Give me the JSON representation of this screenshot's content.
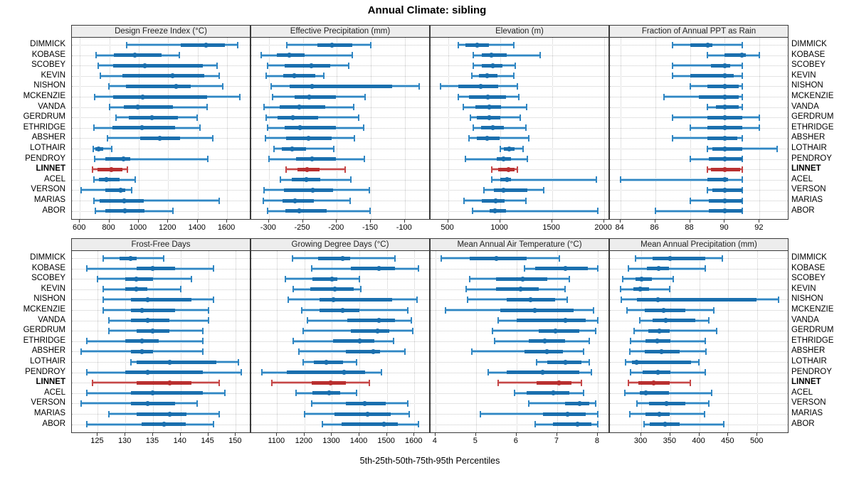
{
  "title": "Annual Climate: sibling",
  "footer_label": "5th-25th-50th-75th-95th Percentiles",
  "highlight_station": "LINNET",
  "colors": {
    "blue_dark": "#1a6fae",
    "blue_line": "#2f86c3",
    "blue_light": "#a9cfe8",
    "red_dark": "#b92f2f",
    "red_line": "#c64747",
    "red_light": "#eac3c3",
    "header_bg": "#ededed",
    "grid": "#c9c9c9",
    "border": "#3a3a3a"
  },
  "chart_data": {
    "type": "dot-whisker-percentile-trellis",
    "percentile_labels": [
      "5th",
      "25th",
      "50th",
      "75th",
      "95th"
    ],
    "layout": {
      "rows": 2,
      "cols": 4
    },
    "stations": [
      "DIMMICK",
      "KOBASE",
      "SCOBEY",
      "KEVIN",
      "NISHON",
      "MCKENZIE",
      "VANDA",
      "GERDRUM",
      "ETHRIDGE",
      "ABSHER",
      "LOTHAIR",
      "PENDROY",
      "LINNET",
      "ACEL",
      "VERSON",
      "MARIAS",
      "ABOR"
    ],
    "panels": [
      {
        "title": "Design Freeze Index (°C)",
        "xlim": [
          546,
          1764
        ],
        "ticks": [
          600,
          800,
          1000,
          1200,
          1400,
          1600
        ],
        "values": [
          [
            920,
            1285,
            1455,
            1585,
            1670
          ],
          [
            710,
            830,
            975,
            1155,
            1275
          ],
          [
            725,
            825,
            1040,
            1435,
            1530
          ],
          [
            740,
            890,
            1230,
            1445,
            1545
          ],
          [
            795,
            915,
            1255,
            1355,
            1570
          ],
          [
            700,
            825,
            1025,
            1465,
            1685
          ],
          [
            800,
            900,
            995,
            1230,
            1465
          ],
          [
            845,
            935,
            1090,
            1265,
            1395
          ],
          [
            695,
            820,
            1020,
            1245,
            1415
          ],
          [
            790,
            1010,
            1145,
            1280,
            1505
          ],
          [
            690,
            705,
            725,
            760,
            815
          ],
          [
            700,
            775,
            895,
            940,
            1470
          ],
          [
            685,
            720,
            815,
            890,
            925
          ],
          [
            695,
            730,
            780,
            870,
            975
          ],
          [
            610,
            775,
            875,
            910,
            950
          ],
          [
            695,
            735,
            900,
            1035,
            1545
          ],
          [
            705,
            775,
            905,
            1040,
            1230
          ]
        ]
      },
      {
        "title": "Effective Precipitation (mm)",
        "xlim": [
          -326,
          -62
        ],
        "ticks": [
          -300,
          -250,
          -200,
          -150,
          -100
        ],
        "values": [
          [
            -274,
            -229,
            -207,
            -177,
            -150
          ],
          [
            -311,
            -288,
            -270,
            -247,
            -177
          ],
          [
            -302,
            -277,
            -237,
            -210,
            -182
          ],
          [
            -304,
            -279,
            -263,
            -232,
            -219
          ],
          [
            -297,
            -269,
            -236,
            -119,
            -79
          ],
          [
            -295,
            -262,
            -241,
            -201,
            -158
          ],
          [
            -307,
            -284,
            -255,
            -217,
            -175
          ],
          [
            -304,
            -287,
            -265,
            -227,
            -168
          ],
          [
            -302,
            -277,
            -254,
            -201,
            -160
          ],
          [
            -305,
            -275,
            -242,
            -208,
            -174
          ],
          [
            -292,
            -281,
            -266,
            -245,
            -204
          ],
          [
            -300,
            -260,
            -236,
            -201,
            -159
          ],
          [
            -275,
            -258,
            -244,
            -225,
            -188
          ],
          [
            -283,
            -266,
            -245,
            -224,
            -179
          ],
          [
            -307,
            -278,
            -235,
            -206,
            -152
          ],
          [
            -308,
            -280,
            -262,
            -234,
            -180
          ],
          [
            -302,
            -276,
            -255,
            -215,
            -151
          ]
        ]
      },
      {
        "title": "Elevation (m)",
        "xlim": [
          332,
          2057
        ],
        "ticks": [
          500,
          1000,
          1500,
          2000
        ],
        "values": [
          [
            600,
            665,
            780,
            890,
            1135
          ],
          [
            740,
            825,
            920,
            1065,
            1385
          ],
          [
            745,
            825,
            930,
            1020,
            1145
          ],
          [
            730,
            795,
            875,
            975,
            1135
          ],
          [
            425,
            600,
            815,
            985,
            1170
          ],
          [
            600,
            705,
            885,
            1055,
            1180
          ],
          [
            650,
            760,
            900,
            1010,
            1255
          ],
          [
            715,
            780,
            895,
            1005,
            1195
          ],
          [
            740,
            820,
            930,
            1035,
            1250
          ],
          [
            700,
            775,
            875,
            995,
            1275
          ],
          [
            1000,
            1035,
            1085,
            1140,
            1220
          ],
          [
            665,
            970,
            1035,
            1105,
            1260
          ],
          [
            920,
            985,
            1080,
            1140,
            1170
          ],
          [
            920,
            1005,
            1065,
            1105,
            1930
          ],
          [
            845,
            940,
            1035,
            1260,
            1420
          ],
          [
            655,
            825,
            955,
            1045,
            1250
          ],
          [
            735,
            900,
            950,
            1060,
            1940
          ]
        ]
      },
      {
        "title": "Fraction of Annual PPT as Rain",
        "xlim": [
          83.4,
          93.7
        ],
        "ticks": [
          84,
          86,
          88,
          90,
          92
        ],
        "values": [
          [
            87,
            88,
            89,
            89.3,
            91
          ],
          [
            89,
            90,
            91,
            91.2,
            92
          ],
          [
            87,
            89.2,
            90,
            90.3,
            91
          ],
          [
            87,
            88,
            90,
            90.5,
            91
          ],
          [
            88,
            89,
            90,
            90.8,
            91
          ],
          [
            86.5,
            88.5,
            90,
            90.8,
            91
          ],
          [
            89,
            89.5,
            90,
            90.8,
            91
          ],
          [
            87,
            89,
            90,
            91,
            92
          ],
          [
            88,
            89,
            90,
            91,
            92
          ],
          [
            87,
            89,
            90,
            90.7,
            91
          ],
          [
            89,
            89.3,
            90,
            91,
            93
          ],
          [
            88,
            89.1,
            90,
            91,
            91
          ],
          [
            89,
            89.2,
            90,
            90.9,
            91
          ],
          [
            84,
            89,
            90,
            90.2,
            91
          ],
          [
            89,
            89.3,
            90,
            91,
            91
          ],
          [
            88,
            89.1,
            90,
            91,
            91
          ],
          [
            86,
            89.1,
            90,
            91,
            91
          ]
        ]
      },
      {
        "title": "Frost-Free Days",
        "xlim": [
          120.3,
          152.8
        ],
        "ticks": [
          125,
          130,
          135,
          140,
          145,
          150
        ],
        "values": [
          [
            126,
            129,
            131,
            132,
            137
          ],
          [
            123,
            132,
            135,
            139,
            146
          ],
          [
            125,
            130,
            132,
            135,
            142
          ],
          [
            126,
            130,
            132,
            134,
            140
          ],
          [
            126,
            131,
            134,
            142,
            146
          ],
          [
            126,
            131,
            133,
            139,
            145
          ],
          [
            127,
            131,
            134,
            138,
            145
          ],
          [
            127,
            132,
            135,
            138,
            144
          ],
          [
            123,
            130,
            133,
            136,
            144
          ],
          [
            122,
            131,
            133,
            135,
            144
          ],
          [
            131,
            132,
            138,
            146.5,
            150.5
          ],
          [
            123,
            130,
            134,
            144,
            151
          ],
          [
            124,
            132,
            138,
            142,
            147
          ],
          [
            123,
            131,
            135,
            144,
            148
          ],
          [
            122,
            131,
            134,
            139,
            143
          ],
          [
            127,
            132,
            138,
            141,
            147
          ],
          [
            123,
            133,
            137,
            141,
            146
          ]
        ]
      },
      {
        "title": "Growing Degree Days (°C)",
        "xlim": [
          1006,
          1659
        ],
        "ticks": [
          1100,
          1200,
          1300,
          1400,
          1500,
          1600
        ],
        "values": [
          [
            1155,
            1250,
            1340,
            1365,
            1530
          ],
          [
            1225,
            1370,
            1470,
            1530,
            1615
          ],
          [
            1130,
            1230,
            1300,
            1320,
            1400
          ],
          [
            1160,
            1220,
            1310,
            1380,
            1405
          ],
          [
            1140,
            1255,
            1305,
            1520,
            1610
          ],
          [
            1190,
            1255,
            1340,
            1400,
            1575
          ],
          [
            1210,
            1355,
            1470,
            1530,
            1590
          ],
          [
            1195,
            1370,
            1465,
            1510,
            1595
          ],
          [
            1160,
            1305,
            1400,
            1455,
            1525
          ],
          [
            1180,
            1350,
            1450,
            1475,
            1565
          ],
          [
            1195,
            1235,
            1280,
            1340,
            1390
          ],
          [
            1045,
            1135,
            1345,
            1420,
            1480
          ],
          [
            1080,
            1225,
            1295,
            1350,
            1435
          ],
          [
            1170,
            1230,
            1290,
            1330,
            1390
          ],
          [
            1225,
            1350,
            1420,
            1495,
            1575
          ],
          [
            1200,
            1310,
            1430,
            1515,
            1580
          ],
          [
            1265,
            1335,
            1490,
            1540,
            1615
          ]
        ]
      },
      {
        "title": "Mean Annual Air Temperature (°C)",
        "xlim": [
          3.88,
          8.3
        ],
        "ticks": [
          4,
          5,
          6,
          7,
          8
        ],
        "values": [
          [
            4.15,
            4.85,
            5.5,
            6.25,
            7.05
          ],
          [
            6.2,
            6.45,
            7.2,
            7.75,
            8.0
          ],
          [
            4.85,
            5.5,
            6.15,
            6.75,
            7.3
          ],
          [
            4.75,
            5.5,
            6.1,
            6.55,
            7.2
          ],
          [
            4.8,
            5.75,
            6.35,
            6.95,
            7.25
          ],
          [
            4.25,
            5.6,
            6.45,
            7.4,
            7.9
          ],
          [
            5.55,
            6.0,
            7.2,
            7.7,
            8.0
          ],
          [
            5.4,
            6.55,
            6.95,
            7.55,
            7.95
          ],
          [
            5.45,
            6.3,
            6.7,
            7.2,
            7.8
          ],
          [
            4.9,
            6.2,
            6.75,
            7.15,
            7.65
          ],
          [
            6.5,
            6.75,
            7.2,
            7.6,
            7.8
          ],
          [
            5.3,
            5.75,
            6.65,
            7.55,
            7.85
          ],
          [
            5.55,
            6.5,
            7.05,
            7.35,
            7.6
          ],
          [
            5.95,
            6.25,
            6.9,
            7.3,
            7.65
          ],
          [
            6.3,
            7.2,
            7.55,
            7.8,
            7.95
          ],
          [
            5.1,
            6.65,
            7.25,
            7.7,
            8.0
          ],
          [
            6.45,
            6.9,
            7.5,
            7.85,
            8.0
          ]
        ]
      },
      {
        "title": "Mean Annual Precipitation (mm)",
        "xlim": [
          246,
          555
        ],
        "ticks": [
          300,
          350,
          400,
          450,
          500
        ],
        "values": [
          [
            290,
            320,
            350,
            410,
            440
          ],
          [
            278,
            310,
            330,
            348,
            410
          ],
          [
            268,
            290,
            301,
            318,
            355
          ],
          [
            265,
            287,
            298,
            314,
            349
          ],
          [
            266,
            293,
            329,
            499,
            537
          ],
          [
            275,
            306,
            339,
            376,
            425
          ],
          [
            298,
            319,
            342,
            393,
            417
          ],
          [
            288,
            312,
            331,
            349,
            430
          ],
          [
            282,
            307,
            327,
            350,
            410
          ],
          [
            280,
            306,
            335,
            366,
            412
          ],
          [
            273,
            284,
            292,
            386,
            399
          ],
          [
            282,
            303,
            329,
            350,
            410
          ],
          [
            278,
            295,
            322,
            349,
            385
          ],
          [
            272,
            298,
            308,
            348,
            421
          ],
          [
            292,
            313,
            344,
            376,
            417
          ],
          [
            280,
            307,
            331,
            349,
            409
          ],
          [
            305,
            315,
            341,
            366,
            442
          ]
        ]
      }
    ]
  }
}
